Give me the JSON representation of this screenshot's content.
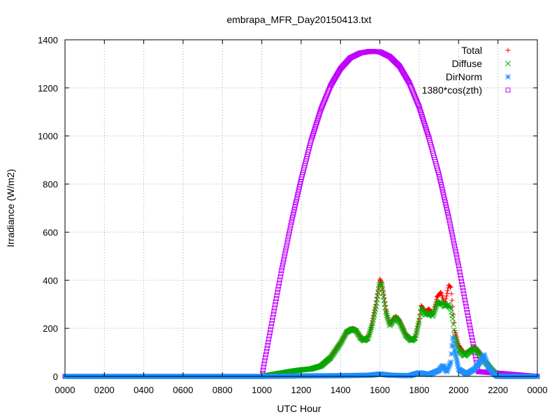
{
  "chart_data": {
    "type": "scatter",
    "title": "embrapa_MFR_Day20150413.txt",
    "xlabel": "UTC Hour",
    "ylabel": "Irradiance (W/m2)",
    "xlim": [
      0,
      24
    ],
    "ylim": [
      0,
      1400
    ],
    "x_ticks": [
      0,
      2,
      4,
      6,
      8,
      10,
      12,
      14,
      16,
      18,
      20,
      22,
      24
    ],
    "x_tick_labels": [
      "0000",
      "0200",
      "0400",
      "0600",
      "0800",
      "1000",
      "1200",
      "1400",
      "1600",
      "1800",
      "2000",
      "2200",
      "0000"
    ],
    "y_ticks": [
      0,
      200,
      400,
      600,
      800,
      1000,
      1200,
      1400
    ],
    "y_tick_labels": [
      "0",
      "200",
      "400",
      "600",
      "800",
      "1000",
      "1200",
      "1400"
    ],
    "grid": true,
    "legend_position": "top-right",
    "series": [
      {
        "name": "Total",
        "marker": "plus",
        "color": "#ff0000",
        "points": [
          [
            10.0,
            0
          ],
          [
            10.5,
            8
          ],
          [
            11.0,
            15
          ],
          [
            11.5,
            22
          ],
          [
            12.0,
            28
          ],
          [
            12.5,
            32
          ],
          [
            13.0,
            45
          ],
          [
            13.5,
            80
          ],
          [
            14.0,
            140
          ],
          [
            14.3,
            185
          ],
          [
            14.6,
            200
          ],
          [
            14.8,
            190
          ],
          [
            15.0,
            165
          ],
          [
            15.2,
            150
          ],
          [
            15.4,
            165
          ],
          [
            15.6,
            220
          ],
          [
            15.8,
            300
          ],
          [
            16.0,
            405
          ],
          [
            16.1,
            390
          ],
          [
            16.3,
            280
          ],
          [
            16.5,
            215
          ],
          [
            16.8,
            250
          ],
          [
            17.0,
            230
          ],
          [
            17.3,
            175
          ],
          [
            17.6,
            150
          ],
          [
            17.8,
            165
          ],
          [
            18.0,
            240
          ],
          [
            18.1,
            295
          ],
          [
            18.3,
            270
          ],
          [
            18.5,
            280
          ],
          [
            18.7,
            260
          ],
          [
            18.9,
            330
          ],
          [
            19.1,
            350
          ],
          [
            19.3,
            300
          ],
          [
            19.5,
            380
          ],
          [
            19.6,
            370
          ],
          [
            19.7,
            290
          ],
          [
            19.8,
            190
          ],
          [
            20.0,
            130
          ],
          [
            20.3,
            95
          ],
          [
            20.6,
            110
          ],
          [
            20.8,
            120
          ],
          [
            21.0,
            105
          ],
          [
            21.3,
            70
          ],
          [
            21.6,
            40
          ],
          [
            21.9,
            10
          ],
          [
            22.0,
            0
          ]
        ]
      },
      {
        "name": "Diffuse",
        "marker": "cross",
        "color": "#00aa00",
        "points": [
          [
            10.0,
            0
          ],
          [
            10.5,
            7
          ],
          [
            11.0,
            14
          ],
          [
            11.5,
            21
          ],
          [
            12.0,
            27
          ],
          [
            12.5,
            31
          ],
          [
            13.0,
            43
          ],
          [
            13.5,
            78
          ],
          [
            14.0,
            138
          ],
          [
            14.3,
            183
          ],
          [
            14.6,
            198
          ],
          [
            14.8,
            188
          ],
          [
            15.0,
            162
          ],
          [
            15.2,
            148
          ],
          [
            15.4,
            160
          ],
          [
            15.6,
            210
          ],
          [
            15.8,
            290
          ],
          [
            16.0,
            390
          ],
          [
            16.1,
            375
          ],
          [
            16.3,
            270
          ],
          [
            16.5,
            212
          ],
          [
            16.8,
            245
          ],
          [
            17.0,
            225
          ],
          [
            17.3,
            172
          ],
          [
            17.6,
            148
          ],
          [
            17.8,
            160
          ],
          [
            18.0,
            230
          ],
          [
            18.1,
            285
          ],
          [
            18.3,
            255
          ],
          [
            18.5,
            265
          ],
          [
            18.7,
            250
          ],
          [
            18.9,
            300
          ],
          [
            19.1,
            310
          ],
          [
            19.3,
            290
          ],
          [
            19.5,
            300
          ],
          [
            19.6,
            280
          ],
          [
            19.7,
            240
          ],
          [
            19.8,
            170
          ],
          [
            20.0,
            110
          ],
          [
            20.3,
            85
          ],
          [
            20.6,
            105
          ],
          [
            20.8,
            118
          ],
          [
            21.0,
            100
          ],
          [
            21.3,
            65
          ],
          [
            21.6,
            35
          ],
          [
            21.9,
            8
          ],
          [
            22.0,
            0
          ]
        ]
      },
      {
        "name": "DirNorm",
        "marker": "star",
        "color": "#1f8fff",
        "points": [
          [
            0,
            0
          ],
          [
            10.0,
            0
          ],
          [
            12.0,
            2
          ],
          [
            14.0,
            3
          ],
          [
            15.5,
            5
          ],
          [
            16.0,
            10
          ],
          [
            16.5,
            5
          ],
          [
            17.5,
            3
          ],
          [
            18.0,
            15
          ],
          [
            18.5,
            8
          ],
          [
            19.0,
            25
          ],
          [
            19.2,
            45
          ],
          [
            19.4,
            20
          ],
          [
            19.6,
            60
          ],
          [
            19.7,
            160
          ],
          [
            19.8,
            110
          ],
          [
            20.0,
            30
          ],
          [
            20.4,
            10
          ],
          [
            20.8,
            30
          ],
          [
            21.1,
            60
          ],
          [
            21.3,
            90
          ],
          [
            21.5,
            40
          ],
          [
            21.8,
            10
          ],
          [
            22.0,
            0
          ],
          [
            24.0,
            0
          ]
        ]
      },
      {
        "name": "1380*cos(zth)",
        "marker": "square",
        "color": "#c000ff",
        "points": [
          [
            0,
            0
          ],
          [
            10.0,
            0
          ],
          [
            10.5,
            220
          ],
          [
            11.0,
            440
          ],
          [
            11.5,
            640
          ],
          [
            12.0,
            820
          ],
          [
            12.5,
            980
          ],
          [
            13.0,
            1110
          ],
          [
            13.5,
            1210
          ],
          [
            14.0,
            1280
          ],
          [
            14.5,
            1325
          ],
          [
            15.0,
            1345
          ],
          [
            15.5,
            1352
          ],
          [
            16.0,
            1350
          ],
          [
            16.5,
            1330
          ],
          [
            17.0,
            1290
          ],
          [
            17.5,
            1220
          ],
          [
            18.0,
            1120
          ],
          [
            18.5,
            990
          ],
          [
            19.0,
            840
          ],
          [
            19.5,
            660
          ],
          [
            20.0,
            460
          ],
          [
            20.5,
            240
          ],
          [
            21.0,
            20
          ],
          [
            24.0,
            0
          ]
        ]
      }
    ]
  }
}
